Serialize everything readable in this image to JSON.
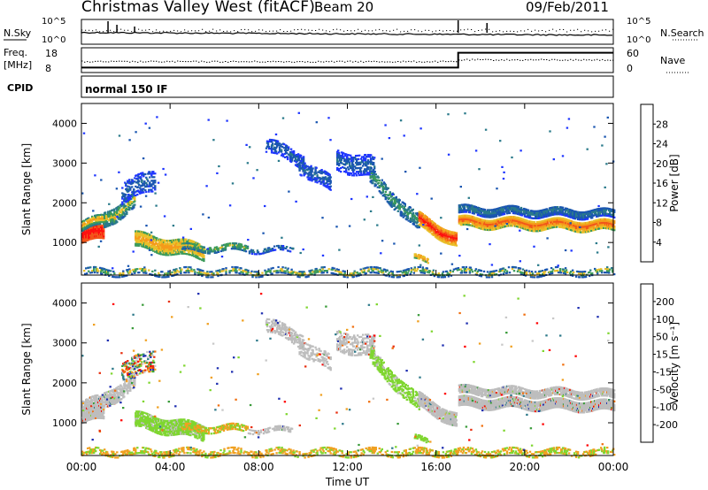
{
  "header": {
    "title": "Christmas Valley West (fitACF)",
    "beam": "Beam 20",
    "date": "09/Feb/2011"
  },
  "side_labels": {
    "nsky": "N.Sky",
    "freq_line1": "Freq.",
    "freq_line2": "[MHz]",
    "cpid": "CPID",
    "nsearch": "N.Search",
    "nave": "Nave",
    "cpid_value": "normal 150 IF"
  },
  "colors": {
    "power_scale": [
      "#1f36ff",
      "#1a56b0",
      "#2a7a8a",
      "#3c9b5a",
      "#e8c02a",
      "#f59a1a",
      "#f2561a",
      "#ff1010"
    ],
    "velocity_scale": [
      "#1f2fb0",
      "#2e7a8a",
      "#3a9b3a",
      "#7fd630",
      "#c8c8c8",
      "#f0a020",
      "#f07010",
      "#e83010",
      "#ff0000"
    ],
    "ground_scatter": "#bdbdbd"
  },
  "chart_data": [
    {
      "type": "line",
      "name": "N.Sky / N.Search",
      "ylabel_left": "N.Sky",
      "ylabel_right": "N.Search",
      "left_ticks": [
        "10^5",
        "10^0"
      ],
      "right_ticks": [
        "10^5",
        "10^0"
      ]
    },
    {
      "type": "line",
      "name": "Freq / Nave",
      "ylabel_left": "Freq. [MHz]",
      "ylabel_right": "Nave",
      "left_ticks": [
        "18",
        "8"
      ],
      "right_ticks": [
        "60",
        "0"
      ],
      "freq_segments": [
        {
          "x_start": 0,
          "x_end": 17,
          "value": 10
        },
        {
          "x_start": 17,
          "x_end": 24,
          "value": 16
        }
      ]
    },
    {
      "type": "table",
      "name": "CPID",
      "ylabel_left": "CPID",
      "value": "normal 150 IF"
    },
    {
      "type": "heatmap",
      "name": "Power",
      "xlabel": "",
      "ylabel": "Slant Range [km]",
      "xlim": [
        0,
        24
      ],
      "ylim": [
        180,
        4500
      ],
      "x_ticks": [
        "00:00",
        "04:00",
        "08:00",
        "12:00",
        "16:00",
        "20:00",
        "00:00"
      ],
      "y_ticks": [
        "1000",
        "2000",
        "3000",
        "4000"
      ],
      "colorbar_label": "Power [dB]",
      "colorbar_ticks": [
        "4",
        "8",
        "12",
        "16",
        "20",
        "24",
        "28"
      ],
      "colorbar_range": [
        0,
        32
      ]
    },
    {
      "type": "heatmap",
      "name": "Velocity",
      "xlabel": "Time UT",
      "ylabel": "Slant Range [km]",
      "xlim": [
        0,
        24
      ],
      "ylim": [
        180,
        4500
      ],
      "x_ticks": [
        "00:00",
        "04:00",
        "08:00",
        "12:00",
        "16:00",
        "20:00",
        "00:00"
      ],
      "y_ticks": [
        "1000",
        "2000",
        "3000",
        "4000"
      ],
      "colorbar_label": "Velocity [m s⁻¹]",
      "colorbar_ticks": [
        "200",
        "100",
        "50",
        "15",
        "-15",
        "-50",
        "-100",
        "-200"
      ]
    }
  ]
}
